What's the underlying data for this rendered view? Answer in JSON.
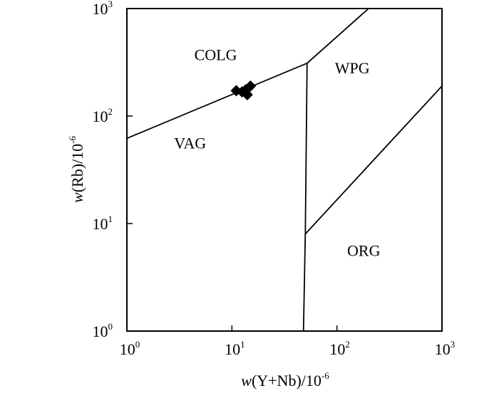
{
  "chart_data": {
    "type": "scatter",
    "xscale": "log",
    "yscale": "log",
    "xlim": [
      1,
      1000
    ],
    "ylim": [
      1,
      1000
    ],
    "xlabel": {
      "italic": "w",
      "text": "(Y+Nb)/10",
      "sup": "-6"
    },
    "ylabel": {
      "italic": "w",
      "text": "(Rb)/10",
      "sup": "-6"
    },
    "x_ticks": [
      {
        "value": 1,
        "base": "10",
        "exp": "0"
      },
      {
        "value": 10,
        "base": "10",
        "exp": "1"
      },
      {
        "value": 100,
        "base": "10",
        "exp": "2"
      },
      {
        "value": 1000,
        "base": "10",
        "exp": "3"
      }
    ],
    "y_ticks": [
      {
        "value": 1,
        "base": "10",
        "exp": "0"
      },
      {
        "value": 10,
        "base": "10",
        "exp": "1"
      },
      {
        "value": 100,
        "base": "10",
        "exp": "2"
      },
      {
        "value": 1000,
        "base": "10",
        "exp": "3"
      }
    ],
    "regions": [
      {
        "label": "COLG",
        "x": 7,
        "y": 330
      },
      {
        "label": "WPG",
        "x": 140,
        "y": 250
      },
      {
        "label": "VAG",
        "x": 4,
        "y": 50
      },
      {
        "label": "ORG",
        "x": 180,
        "y": 5
      }
    ],
    "boundaries": [
      {
        "points": [
          [
            1,
            62
          ],
          [
            52,
            310
          ]
        ]
      },
      {
        "points": [
          [
            52,
            310
          ],
          [
            200,
            1000
          ]
        ]
      },
      {
        "points": [
          [
            52,
            310
          ],
          [
            50,
            8
          ],
          [
            48,
            1
          ]
        ]
      },
      {
        "points": [
          [
            50,
            8
          ],
          [
            1000,
            190
          ]
        ]
      }
    ],
    "points": [
      {
        "x": 11,
        "y": 172
      },
      {
        "x": 12.5,
        "y": 168
      },
      {
        "x": 13.5,
        "y": 175
      },
      {
        "x": 14,
        "y": 158
      },
      {
        "x": 15,
        "y": 190
      }
    ],
    "marker": "diamond",
    "grid": false
  }
}
